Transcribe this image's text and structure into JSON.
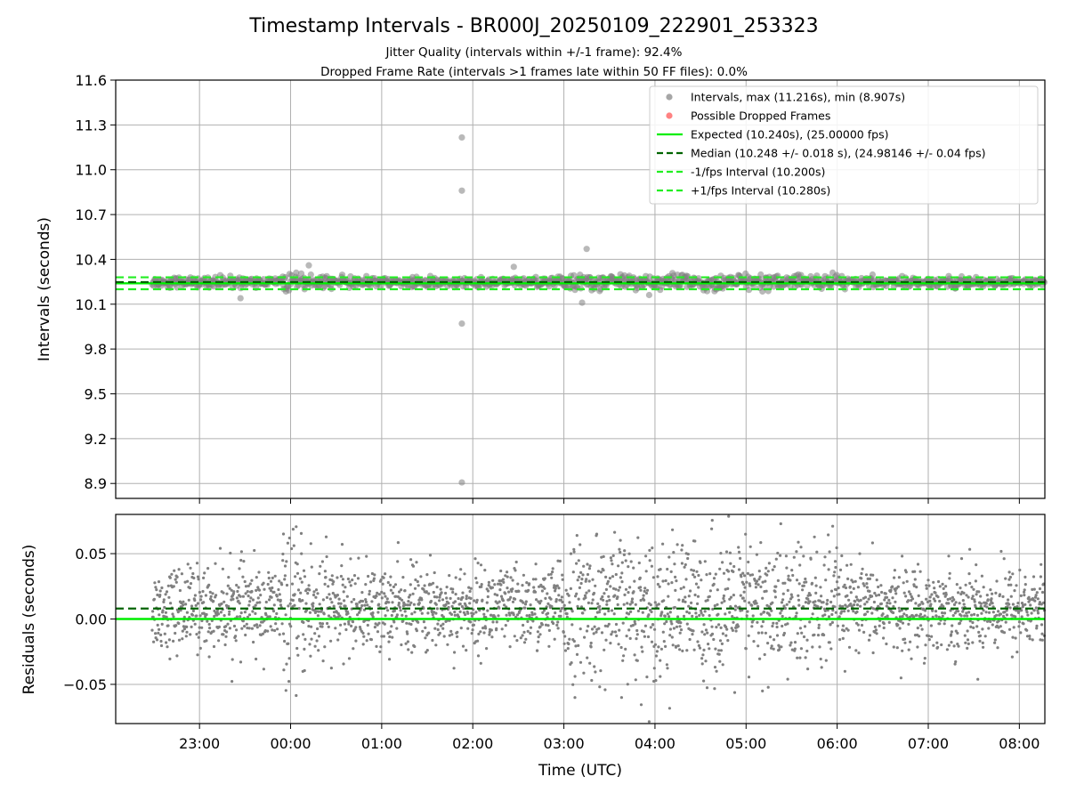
{
  "title": "Timestamp Intervals - BR000J_20250109_222901_253323",
  "subtitle_line1": "Jitter Quality (intervals within +/-1 frame): 92.4%",
  "subtitle_line2": "Dropped Frame Rate (intervals >1 frames late within 50 FF files): 0.0%",
  "colors": {
    "scatter": "#808080",
    "dropped": "#ff4d4d",
    "expected": "#00ee00",
    "median": "#006400",
    "interval_bounds": "#22ee22",
    "grid": "#b0b0b0"
  },
  "chart_data": [
    {
      "type": "scatter",
      "name": "intervals",
      "ylabel": "Intervals (seconds)",
      "ylim": [
        8.8,
        11.6
      ],
      "yticks": [
        8.9,
        9.2,
        9.5,
        9.8,
        10.1,
        10.4,
        10.7,
        11.0,
        11.3,
        11.6
      ],
      "ytick_labels": [
        "8.9",
        "9.2",
        "9.5",
        "9.8",
        "10.1",
        "10.4",
        "10.7",
        "11.0",
        "11.3",
        "11.6"
      ],
      "xlim_hours_utc": [
        22.08,
        32.28
      ],
      "grid": true,
      "legend_position": "top-right",
      "legend": [
        {
          "label": "Intervals, max (11.216s), min (8.907s)",
          "kind": "dot",
          "color": "#808080"
        },
        {
          "label": "Possible Dropped Frames",
          "kind": "dot",
          "color": "#ff4d4d"
        },
        {
          "label": "Expected (10.240s), (25.00000 fps)",
          "kind": "line",
          "color": "#00ee00"
        },
        {
          "label": "Median (10.248 +/- 0.018 s), (24.98146 +/- 0.04 fps)",
          "kind": "dashed",
          "color": "#006400"
        },
        {
          "label": "-1/fps Interval (10.200s)",
          "kind": "dashed",
          "color": "#22ee22"
        },
        {
          "label": "+1/fps Interval (10.280s)",
          "kind": "dashed",
          "color": "#22ee22"
        }
      ],
      "reference_lines": {
        "expected": 10.24,
        "median": 10.248,
        "minus_1fps": 10.2,
        "plus_1fps": 10.28
      },
      "outliers": [
        {
          "x": 25.88,
          "y": 11.216
        },
        {
          "x": 25.88,
          "y": 10.86
        },
        {
          "x": 25.88,
          "y": 9.97
        },
        {
          "x": 25.88,
          "y": 8.907
        },
        {
          "x": 27.25,
          "y": 10.47
        },
        {
          "x": 27.2,
          "y": 10.11
        },
        {
          "x": 24.2,
          "y": 10.36
        },
        {
          "x": 23.45,
          "y": 10.14
        },
        {
          "x": 26.45,
          "y": 10.35
        }
      ],
      "bulk_description_values": {
        "center": 10.248,
        "spread": 0.018
      }
    },
    {
      "type": "scatter",
      "name": "residuals",
      "xlabel": "Time (UTC)",
      "ylabel": "Residuals (seconds)",
      "ylim": [
        -0.08,
        0.08
      ],
      "yticks": [
        -0.05,
        0.0,
        0.05
      ],
      "ytick_labels": [
        "−0.05",
        "0.00",
        "0.05"
      ],
      "xticks_hours_utc": [
        23,
        24,
        25,
        26,
        27,
        28,
        29,
        30,
        31,
        32
      ],
      "xtick_labels": [
        "23:00",
        "00:00",
        "01:00",
        "02:00",
        "03:00",
        "04:00",
        "05:00",
        "06:00",
        "07:00",
        "08:00"
      ],
      "xlim_hours_utc": [
        22.08,
        32.28
      ],
      "data_start_hour": 22.48,
      "data_end_hour": 32.28,
      "grid": true,
      "reference_lines": {
        "expected": 0.0,
        "median": 0.008
      }
    }
  ]
}
